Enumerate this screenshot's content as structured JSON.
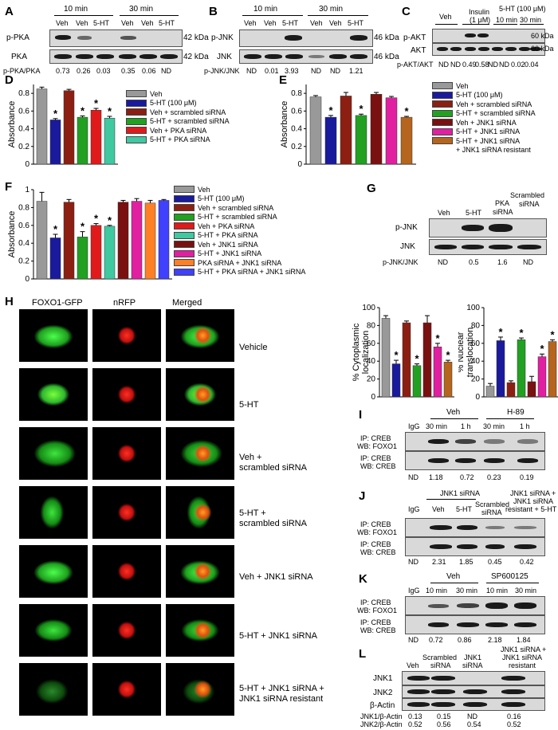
{
  "panels": {
    "A": "A",
    "B": "B",
    "C": "C",
    "D": "D",
    "E": "E",
    "F": "F",
    "G": "G",
    "H": "H",
    "I": "I",
    "J": "J",
    "K": "K",
    "L": "L"
  },
  "panelA": {
    "time1": "10 min",
    "time2": "30 min",
    "lanes": [
      "Veh",
      "Veh",
      "5-HT",
      "Veh",
      "Veh",
      "5-HT"
    ],
    "rows": [
      "p-PKA",
      "PKA"
    ],
    "kda": "42 kDa",
    "ratio_label": "p-PKA/PKA",
    "ratios": [
      "0.73",
      "0.26",
      "0.03",
      "0.35",
      "0.06",
      "ND"
    ]
  },
  "panelB": {
    "time1": "10 min",
    "time2": "30 min",
    "lanes": [
      "Veh",
      "Veh",
      "5-HT",
      "Veh",
      "Veh",
      "5-HT"
    ],
    "rows": [
      "p-JNK",
      "JNK"
    ],
    "kda": "46 kDa",
    "ratio_label": "p-JNK/JNK",
    "ratios": [
      "ND",
      "0.01",
      "3.93",
      "ND",
      "ND",
      "1.21"
    ]
  },
  "panelC": {
    "lanes": [
      "Veh",
      "Insulin",
      "(1 μM)",
      "5-HT (100 μM)",
      "10 min",
      "30 min"
    ],
    "rows": [
      "p-AKT",
      "AKT"
    ],
    "kda": "60 kDa",
    "ratio_label": "p-AKT/AKT",
    "ratios": [
      "ND",
      "ND",
      "0.49",
      "0.58",
      "ND",
      "ND",
      "0.02",
      "0.04"
    ]
  },
  "chart_data": [
    {
      "panel": "D",
      "type": "bar",
      "ylabel": "Absorbance",
      "ylim": [
        0,
        0.9
      ],
      "yticks": [
        "0",
        "0.2",
        "0.4",
        "0.6",
        "0.8"
      ],
      "categories": [
        "Veh",
        "5-HT (100 μM)",
        "Veh + scrambled siRNA",
        "5-HT + scrambled siRNA",
        "Veh + PKA siRNA",
        "5-HT + PKA siRNA"
      ],
      "values": [
        0.85,
        0.5,
        0.83,
        0.53,
        0.61,
        0.52
      ],
      "errors": [
        0.02,
        0.015,
        0.015,
        0.015,
        0.02,
        0.02
      ],
      "significant": [
        false,
        true,
        false,
        true,
        true,
        true
      ],
      "colors": [
        "#999999",
        "#1a1a9c",
        "#8c1f12",
        "#22a022",
        "#e01a1a",
        "#40c8a0"
      ]
    },
    {
      "panel": "E",
      "type": "bar",
      "ylabel": "Absorbance",
      "ylim": [
        0,
        0.9
      ],
      "yticks": [
        "0",
        "0.2",
        "0.4",
        "0.6",
        "0.8"
      ],
      "categories": [
        "Veh",
        "5-HT (100 μM)",
        "Veh + scrambled siRNA",
        "5-HT + scrambled siRNA",
        "Veh + JNK1 siRNA",
        "5-HT + JNK1 siRNA",
        "5-HT + JNK1 siRNA + JNK1 siRNA resistant"
      ],
      "values": [
        0.76,
        0.53,
        0.77,
        0.55,
        0.79,
        0.75,
        0.53
      ],
      "errors": [
        0.015,
        0.02,
        0.04,
        0.015,
        0.02,
        0.015,
        0.01
      ],
      "significant": [
        false,
        true,
        false,
        true,
        false,
        false,
        true
      ],
      "colors": [
        "#999999",
        "#1a1a9c",
        "#8c1f12",
        "#22a022",
        "#7a1010",
        "#e020a0",
        "#b5651d"
      ]
    },
    {
      "panel": "F",
      "type": "bar",
      "ylabel": "Absorbance",
      "ylim": [
        0,
        1.0
      ],
      "yticks": [
        "0",
        "0.2",
        "0.4",
        "0.6",
        "0.8",
        "1"
      ],
      "categories": [
        "Veh",
        "5-HT (100 μM)",
        "Veh + scrambled siRNA",
        "5-HT + scrambled siRNA",
        "Veh + PKA siRNA",
        "5-HT + PKA siRNA",
        "Veh + JNK1 siRNA",
        "5-HT + JNK1 siRNA",
        "PKA siRNA + JNK1 siRNA",
        "5-HT + PKA siRNA + JNK1 siRNA"
      ],
      "values": [
        0.87,
        0.46,
        0.86,
        0.47,
        0.6,
        0.59,
        0.86,
        0.87,
        0.85,
        0.88
      ],
      "errors": [
        0.1,
        0.04,
        0.03,
        0.06,
        0.02,
        0.01,
        0.02,
        0.03,
        0.03,
        0.01
      ],
      "significant": [
        false,
        true,
        false,
        true,
        true,
        true,
        false,
        false,
        false,
        false
      ],
      "colors": [
        "#999999",
        "#1a1a9c",
        "#8c1f12",
        "#22a022",
        "#e01a1a",
        "#40c8a0",
        "#7a1010",
        "#e020a0",
        "#ff7f27",
        "#4040ff"
      ]
    },
    {
      "panel": "H1",
      "type": "bar",
      "ylabel": "% Cytoplasmic localization",
      "ylim": [
        0,
        100
      ],
      "yticks": [
        "0",
        "20",
        "40",
        "60",
        "80",
        "100"
      ],
      "categories": [
        "Vehicle",
        "5-HT",
        "Veh + scrambled siRNA",
        "5-HT + scrambled siRNA",
        "Veh + JNK1 siRNA",
        "5-HT + JNK1 siRNA",
        "5-HT + JNK1 siRNA + JNK1 siRNA resistant"
      ],
      "values": [
        88,
        37,
        83,
        35,
        83,
        56,
        39
      ],
      "errors": [
        3,
        4,
        2,
        2,
        8,
        4,
        2
      ],
      "significant": [
        false,
        true,
        false,
        true,
        false,
        true,
        true
      ],
      "colors": [
        "#999999",
        "#1a1a9c",
        "#8c1f12",
        "#22a022",
        "#7a1010",
        "#e020a0",
        "#b5651d"
      ]
    },
    {
      "panel": "H2",
      "type": "bar",
      "ylabel": "% Nuclear translocation",
      "ylim": [
        0,
        100
      ],
      "yticks": [
        "0",
        "20",
        "40",
        "60",
        "80",
        "100"
      ],
      "categories": [
        "Vehicle",
        "5-HT",
        "Veh + scrambled siRNA",
        "5-HT + scrambled siRNA",
        "Veh + JNK1 siRNA",
        "5-HT + JNK1 siRNA",
        "5-HT + JNK1 siRNA + JNK1 siRNA resistant"
      ],
      "values": [
        12,
        63,
        16,
        64,
        17,
        45,
        62
      ],
      "errors": [
        3,
        4,
        2,
        2,
        6,
        3,
        2
      ],
      "significant": [
        false,
        true,
        false,
        true,
        false,
        true,
        true
      ],
      "colors": [
        "#999999",
        "#1a1a9c",
        "#8c1f12",
        "#22a022",
        "#7a1010",
        "#e020a0",
        "#b5651d"
      ]
    }
  ],
  "legendD": [
    "Veh",
    "5-HT (100 μM)",
    "Veh + scrambled siRNA",
    "5-HT + scrambled siRNA",
    "Veh + PKA siRNA",
    "5-HT + PKA siRNA"
  ],
  "legendE": [
    "Veh",
    "5-HT (100 μM)",
    "Veh + scrambled siRNA",
    "5-HT + scrambled siRNA",
    "Veh + JNK1 siRNA",
    "5-HT + JNK1 siRNA",
    "5-HT + JNK1 siRNA",
    "+ JNK1 siRNA resistant"
  ],
  "legendF": [
    "Veh",
    "5-HT (100 μM)",
    "Veh + scrambled siRNA",
    "5-HT + scrambled siRNA",
    "Veh + PKA siRNA",
    "5-HT + PKA siRNA",
    "Veh + JNK1 siRNA",
    "5-HT + JNK1 siRNA",
    "PKA siRNA + JNK1 siRNA",
    "5-HT + PKA siRNA + JNK1 siRNA"
  ],
  "star": "*",
  "panelG": {
    "lanes": [
      "Veh",
      "5-HT",
      "PKA",
      "siRNA",
      "Scrambled",
      "siRNA"
    ],
    "rows": [
      "p-JNK",
      "JNK"
    ],
    "ratio_label": "p-JNK/JNK",
    "ratios": [
      "ND",
      "0.5",
      "1.6",
      "ND"
    ]
  },
  "panelH": {
    "columns": [
      "FOXO1-GFP",
      "nRFP",
      "Merged"
    ],
    "conditions": [
      "Vehicle",
      "5-HT",
      "Veh +",
      "scrambled siRNA",
      "5-HT +",
      "scrambled siRNA",
      "Veh + JNK1 siRNA",
      "5-HT + JNK1 siRNA",
      "5-HT + JNK1 siRNA +",
      "JNK1 siRNA resistant"
    ],
    "ylabel1a": "% Cytoplasmic",
    "ylabel1b": "localization",
    "ylabel2a": "% Nuclear",
    "ylabel2b": "translocation"
  },
  "panelI": {
    "groups": [
      "Veh",
      "H-89"
    ],
    "lanes": [
      "IgG",
      "30 min",
      "1 h",
      "30 min",
      "1 h"
    ],
    "row1": [
      "IP: CREB",
      "WB: FOXO1"
    ],
    "row2": [
      "IP: CREB",
      "WB: CREB"
    ],
    "ratios": [
      "ND",
      "1.18",
      "0.72",
      "0.23",
      "0.19"
    ]
  },
  "panelJ": {
    "lanes": [
      "IgG",
      "JNK1 siRNA",
      "Veh",
      "5-HT",
      "Scrambled",
      "siRNA",
      "JNK1 siRNA +",
      "JNK1 siRNA",
      "resistant + 5-HT"
    ],
    "row1": [
      "IP: CREB",
      "WB: FOXO1"
    ],
    "row2": [
      "IP: CREB",
      "WB: CREB"
    ],
    "ratios": [
      "ND",
      "2.31",
      "1.85",
      "0.45",
      "0.42"
    ]
  },
  "panelK": {
    "groups": [
      "Veh",
      "SP600125"
    ],
    "lanes": [
      "IgG",
      "10 min",
      "30 min",
      "10 min",
      "30 min"
    ],
    "row1": [
      "IP: CREB",
      "WB: FOXO1"
    ],
    "row2": [
      "IP: CREB",
      "WB: CREB"
    ],
    "ratios": [
      "ND",
      "0.72",
      "0.86",
      "2.18",
      "1.84"
    ]
  },
  "panelL": {
    "lanes": [
      "Veh",
      "Scrambled",
      "siRNA",
      "JNK1",
      "siRNA",
      "JNK1 siRNA +",
      "JNK1 siRNA",
      "resistant"
    ],
    "rows": [
      "JNK1",
      "JNK2",
      "β-Actin"
    ],
    "ratio1_label": "JNK1/β-Actin",
    "ratio2_label": "JNK2/β-Actin",
    "ratios1": [
      "0.13",
      "0.15",
      "ND",
      "0.16"
    ],
    "ratios2": [
      "0.52",
      "0.56",
      "0.54",
      "0.52"
    ]
  }
}
